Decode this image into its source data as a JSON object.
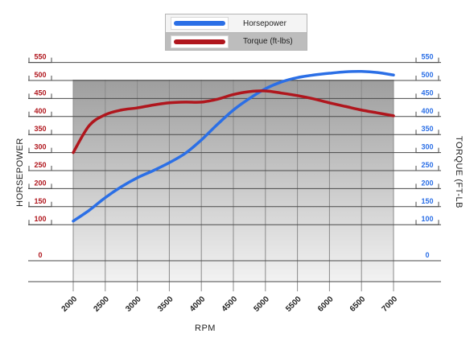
{
  "chart_data": {
    "type": "line",
    "xlabel": "RPM",
    "ylabel_left": "HORSEPOWER",
    "ylabel_right": "TORQUE (FT-LB",
    "x_ticks": [
      2000,
      2500,
      3000,
      3500,
      4000,
      4500,
      5000,
      5500,
      6000,
      6500,
      7000
    ],
    "y_ticks": [
      0,
      100,
      150,
      200,
      250,
      300,
      350,
      400,
      450,
      500,
      550
    ],
    "xlim": [
      2000,
      7000
    ],
    "legend_position": "top-center",
    "grid": true,
    "colors": {
      "horsepower": "#2b6fe6",
      "torque": "#b0161d"
    },
    "series": [
      {
        "name": "Horsepower",
        "x": [
          2000,
          2250,
          2500,
          2750,
          3000,
          3250,
          3500,
          3750,
          4000,
          4250,
          4500,
          4750,
          5000,
          5250,
          5500,
          5750,
          6000,
          6250,
          6500,
          6750,
          7000
        ],
        "values": [
          110,
          140,
          175,
          205,
          230,
          250,
          272,
          298,
          335,
          378,
          418,
          450,
          477,
          496,
          508,
          515,
          520,
          524,
          525,
          522,
          515
        ]
      },
      {
        "name": "Torque (ft-lbs)",
        "x": [
          2000,
          2250,
          2500,
          2750,
          3000,
          3250,
          3500,
          3750,
          4000,
          4250,
          4500,
          4750,
          5000,
          5250,
          5500,
          5750,
          6000,
          6250,
          6500,
          6750,
          7000
        ],
        "values": [
          300,
          375,
          405,
          418,
          424,
          432,
          438,
          440,
          440,
          448,
          461,
          469,
          471,
          465,
          458,
          449,
          438,
          428,
          418,
          410,
          402
        ]
      }
    ]
  }
}
